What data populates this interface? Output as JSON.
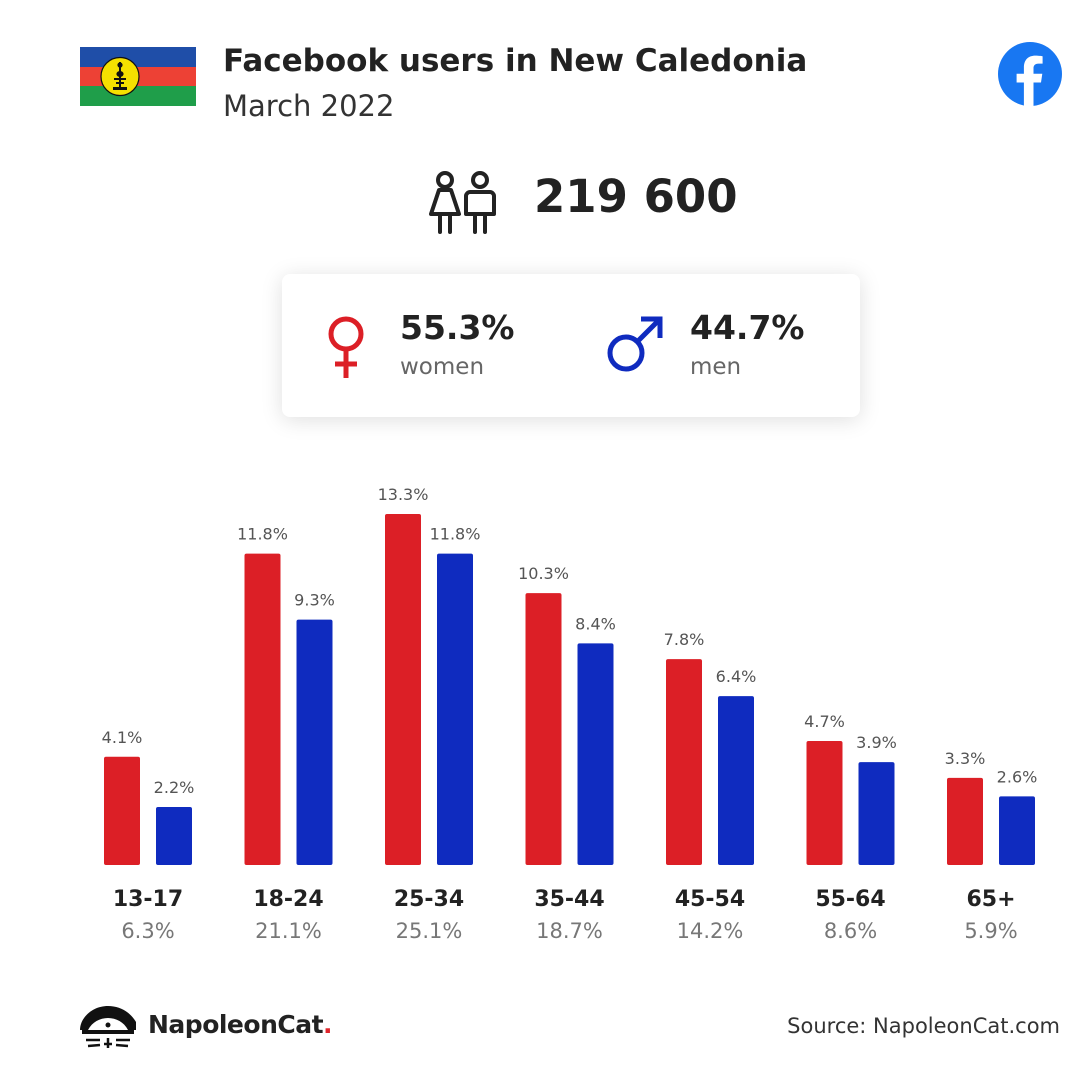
{
  "header": {
    "title": "Facebook users in New Caledonia",
    "subtitle": "March 2022"
  },
  "total_users": "219 600",
  "gender": {
    "women": {
      "percent": "55.3%",
      "label": "women"
    },
    "men": {
      "percent": "44.7%",
      "label": "men"
    }
  },
  "colors": {
    "women": "#dc1f26",
    "men": "#0f2bbf",
    "facebook": "#1877f2",
    "flag_blue": "#1f4ea8",
    "flag_red": "#ed4135",
    "flag_green": "#1f9e4a",
    "flag_disc": "#f5e000"
  },
  "icons": {
    "flag": "new-caledonia-flag",
    "platform": "facebook-icon",
    "users": "users-icon",
    "women": "female-symbol-icon",
    "men": "male-symbol-icon",
    "brand": "napoleoncat-logo-icon"
  },
  "chart_data": {
    "type": "bar",
    "categories": [
      "13-17",
      "18-24",
      "25-34",
      "35-44",
      "45-54",
      "55-64",
      "65+"
    ],
    "category_totals": [
      "6.3%",
      "21.1%",
      "25.1%",
      "18.7%",
      "14.2%",
      "8.6%",
      "5.9%"
    ],
    "series": [
      {
        "name": "women",
        "values": [
          4.1,
          11.8,
          13.3,
          10.3,
          7.8,
          4.7,
          3.3
        ],
        "labels": [
          "4.1%",
          "11.8%",
          "13.3%",
          "10.3%",
          "7.8%",
          "4.7%",
          "3.3%"
        ]
      },
      {
        "name": "men",
        "values": [
          2.2,
          9.3,
          11.8,
          8.4,
          6.4,
          3.9,
          2.6
        ],
        "labels": [
          "2.2%",
          "9.3%",
          "11.8%",
          "8.4%",
          "6.4%",
          "3.9%",
          "2.6%"
        ]
      }
    ],
    "ylim": [
      0,
      13.3
    ],
    "grid": false
  },
  "footer": {
    "brand_name": "NapoleonCat",
    "brand_dot": ".",
    "source": "Source: NapoleonCat.com"
  }
}
